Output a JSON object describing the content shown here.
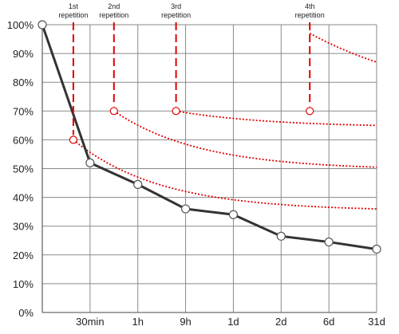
{
  "chart_data": {
    "type": "line",
    "title": "",
    "xlabel": "",
    "ylabel": "",
    "ylim": [
      0,
      100
    ],
    "x_ticks": [
      {
        "label": "",
        "pos": 0
      },
      {
        "label": "30min",
        "pos": 1
      },
      {
        "label": "1h",
        "pos": 2
      },
      {
        "label": "9h",
        "pos": 3
      },
      {
        "label": "1d",
        "pos": 4
      },
      {
        "label": "2d",
        "pos": 5
      },
      {
        "label": "6d",
        "pos": 6
      },
      {
        "label": "31d",
        "pos": 7
      }
    ],
    "y_ticks": [
      "0%",
      "10%",
      "20%",
      "30%",
      "40%",
      "50%",
      "60%",
      "70%",
      "80%",
      "90%",
      "100%"
    ],
    "grid": true,
    "colors": {
      "forgetting": "#333333",
      "repetition": "#e00000"
    },
    "series": [
      {
        "type": "solid",
        "points": [
          {
            "x": 0,
            "y": 100
          },
          {
            "x": 1,
            "y": 52
          },
          {
            "x": 2,
            "y": 44.5
          },
          {
            "x": 3,
            "y": 36
          },
          {
            "x": 4,
            "y": 34
          },
          {
            "x": 5,
            "y": 26.5
          },
          {
            "x": 6,
            "y": 24.5
          },
          {
            "x": 7,
            "y": 22
          }
        ]
      },
      {
        "type": "dotted",
        "start": {
          "x": 0.65,
          "y": 60
        },
        "end": {
          "x": 7,
          "y": 36
        },
        "k": 0.55
      },
      {
        "type": "dotted",
        "start": {
          "x": 1.5,
          "y": 70
        },
        "end": {
          "x": 7,
          "y": 50.5
        },
        "k": 0.55
      },
      {
        "type": "dotted",
        "start": {
          "x": 2.8,
          "y": 70
        },
        "end": {
          "x": 7,
          "y": 65
        },
        "k": 0.5
      },
      {
        "type": "dotted",
        "start": {
          "x": 5.6,
          "y": 97
        },
        "end": {
          "x": 7,
          "y": 87
        },
        "k": 0.35
      }
    ],
    "repetitions": [
      {
        "label": "1st repetition",
        "x": 0.65,
        "y": 60
      },
      {
        "label": "2nd repetition",
        "x": 1.5,
        "y": 70
      },
      {
        "label": "3rd repetition",
        "x": 2.8,
        "y": 70
      },
      {
        "label": "4th repetition",
        "x": 5.6,
        "y": 70
      }
    ]
  }
}
